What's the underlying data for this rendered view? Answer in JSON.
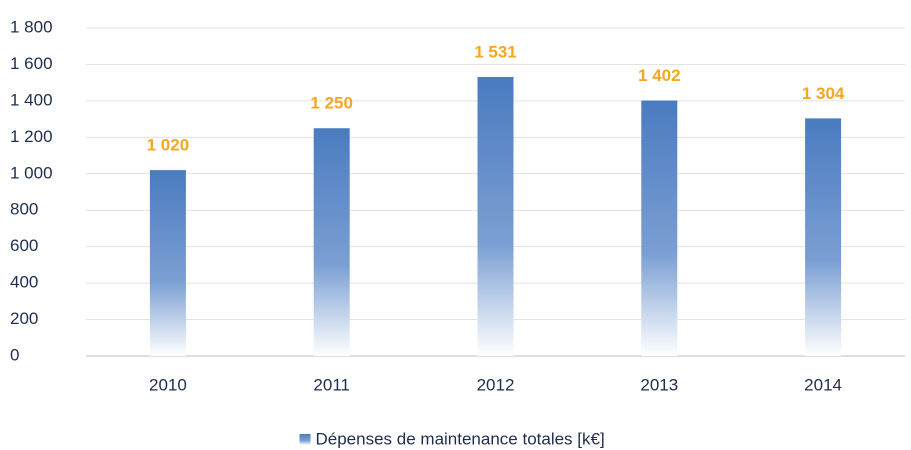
{
  "chart_data": {
    "type": "bar",
    "categories": [
      "2010",
      "2011",
      "2012",
      "2013",
      "2014"
    ],
    "series": [
      {
        "name": "Dépenses de maintenance totales [k€]",
        "color": "#4a7bc0",
        "values": [
          1020,
          1250,
          1531,
          1402,
          1304
        ],
        "value_labels": [
          "1 020",
          "1 250",
          "1 531",
          "1 402",
          "1 304"
        ]
      }
    ],
    "ylim": [
      0,
      1800
    ],
    "yticks": [
      0,
      200,
      400,
      600,
      800,
      {
        "value": 1000,
        "label": "1 000"
      },
      {
        "value": 1200,
        "label": "1 200"
      },
      {
        "value": 1400,
        "label": "1 400"
      },
      {
        "value": 1600,
        "label": "1 600"
      },
      {
        "value": 1800,
        "label": "1 800"
      }
    ],
    "grid": true,
    "legend": "bottom",
    "value_label_color": "#f5a623"
  }
}
